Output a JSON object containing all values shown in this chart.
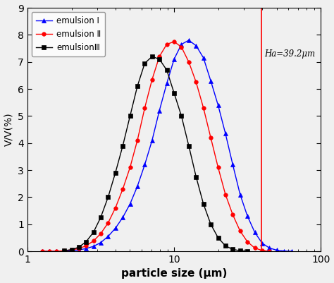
{
  "xlabel": "particle size (μm)",
  "ylabel": "V/V(%)",
  "xlim": [
    1,
    100
  ],
  "ylim": [
    0,
    9
  ],
  "yticks": [
    0,
    1,
    2,
    3,
    4,
    5,
    6,
    7,
    8,
    9
  ],
  "vline_x": 39.2,
  "vline_label": "Ha=39.2μm",
  "legend": [
    "emulsion Ⅰ",
    "emulsion Ⅱ",
    "emulsionⅢ"
  ],
  "emulsion1": {
    "color": "blue",
    "marker": "^",
    "markersize": 4,
    "x_points": [
      1.26,
      1.41,
      1.58,
      1.78,
      2.0,
      2.24,
      2.51,
      2.82,
      3.16,
      3.55,
      3.98,
      4.47,
      5.01,
      5.62,
      6.31,
      7.08,
      7.94,
      8.91,
      10.0,
      11.22,
      12.59,
      14.13,
      15.85,
      17.78,
      19.95,
      22.39,
      25.12,
      28.18,
      31.62,
      35.48,
      39.81,
      44.67,
      50.12,
      56.23,
      63.1
    ],
    "y_points": [
      0.0,
      0.0,
      0.0,
      0.01,
      0.02,
      0.05,
      0.1,
      0.18,
      0.32,
      0.55,
      0.85,
      1.25,
      1.75,
      2.4,
      3.2,
      4.1,
      5.2,
      6.2,
      7.1,
      7.65,
      7.8,
      7.6,
      7.15,
      6.3,
      5.4,
      4.35,
      3.2,
      2.1,
      1.3,
      0.7,
      0.3,
      0.12,
      0.04,
      0.01,
      0.0
    ]
  },
  "emulsion2": {
    "color": "red",
    "marker": "o",
    "markersize": 4,
    "x_points": [
      1.26,
      1.41,
      1.58,
      1.78,
      2.0,
      2.24,
      2.51,
      2.82,
      3.16,
      3.55,
      3.98,
      4.47,
      5.01,
      5.62,
      6.31,
      7.08,
      7.94,
      8.91,
      10.0,
      11.22,
      12.59,
      14.13,
      15.85,
      17.78,
      19.95,
      22.39,
      25.12,
      28.18,
      31.62,
      35.48,
      39.81,
      44.67
    ],
    "y_points": [
      0.0,
      0.0,
      0.0,
      0.02,
      0.05,
      0.1,
      0.2,
      0.38,
      0.65,
      1.05,
      1.6,
      2.3,
      3.1,
      4.1,
      5.3,
      6.35,
      7.2,
      7.65,
      7.75,
      7.55,
      7.0,
      6.25,
      5.3,
      4.2,
      3.1,
      2.1,
      1.35,
      0.75,
      0.35,
      0.12,
      0.03,
      0.0
    ]
  },
  "emulsion3": {
    "color": "black",
    "marker": "s",
    "markersize": 4,
    "x_points": [
      1.78,
      2.0,
      2.24,
      2.51,
      2.82,
      3.16,
      3.55,
      3.98,
      4.47,
      5.01,
      5.62,
      6.31,
      7.08,
      7.94,
      8.91,
      10.0,
      11.22,
      12.59,
      14.13,
      15.85,
      17.78,
      19.95,
      22.39,
      25.12,
      28.18,
      31.62
    ],
    "y_points": [
      0.02,
      0.06,
      0.15,
      0.35,
      0.7,
      1.25,
      2.0,
      2.9,
      3.9,
      5.0,
      6.1,
      6.95,
      7.2,
      7.1,
      6.7,
      5.85,
      5.0,
      3.9,
      2.75,
      1.75,
      1.0,
      0.5,
      0.2,
      0.07,
      0.02,
      0.0
    ]
  },
  "linewidth": 1.0,
  "figsize": [
    4.74,
    4.01
  ],
  "dpi": 100
}
